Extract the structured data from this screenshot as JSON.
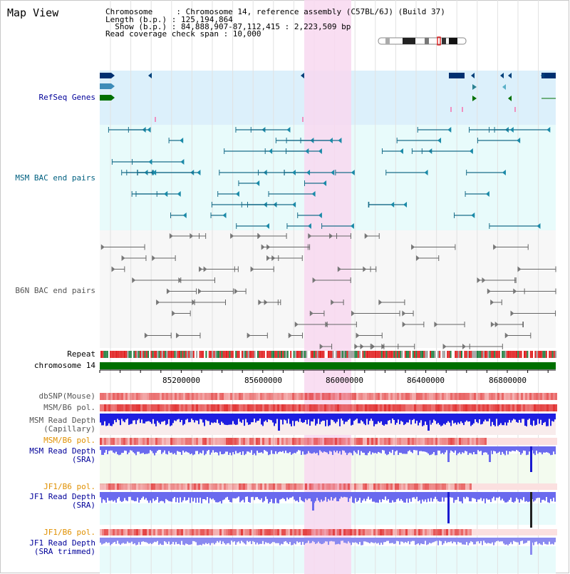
{
  "page": {
    "title": "Map View"
  },
  "info": {
    "line1": "Chromosome     : Chromosome 14, reference assembly (C57BL/6J) (Build 37)",
    "line2": "Length (b.p.) : 125,194,864",
    "line3": "  Show (b.p.) : 84,888,907-87,112,415 : 2,223,509 bp",
    "line4": "Read coverage check span : 10,000"
  },
  "tracks": {
    "refseq": "RefSeq Genes",
    "msm_bac": "MSM BAC end pairs",
    "b6n_bac": "B6N BAC end pairs",
    "repeat": "Repeat",
    "chromosome": "chromosome 14",
    "dbsnp": "dbSNP(Mouse)",
    "msm_b6_pol_1": "MSM/B6 pol.",
    "msm_depth_cap_1": "MSM Read Depth",
    "msm_depth_cap_2": "(Capillary)",
    "msm_b6_pol_2": "MSM/B6 pol.",
    "msm_depth_sra_1": "MSM Read Depth",
    "msm_depth_sra_2": "(SRA)",
    "jf1_b6_pol_1": "JF1/B6 pol.",
    "jf1_depth_sra_1": "JF1 Read Depth",
    "jf1_depth_sra_2": "(SRA)",
    "jf1_b6_pol_2": "JF1/B6 pol.",
    "jf1_depth_trim_1": "JF1 Read Depth",
    "jf1_depth_trim_2": "(SRA trimmed)"
  },
  "axis": {
    "ticks": [
      "85200000",
      "85600000",
      "86000000",
      "86400000",
      "86800000"
    ]
  },
  "colors": {
    "highlight": "#f8d8f0",
    "refseq_bg": "#dcf0fb",
    "msm_bac_bg": "#e8fbfb",
    "b6n_bac_bg": "#f4f4f4",
    "chromosome_bar": "#007000",
    "msm_depth": "#2020e0",
    "sra_depth": "#7070f0",
    "pol_red": "#e04040",
    "track_blue_label": "#000099",
    "track_teal_label": "#006080",
    "track_orange_label": "#e09000"
  }
}
